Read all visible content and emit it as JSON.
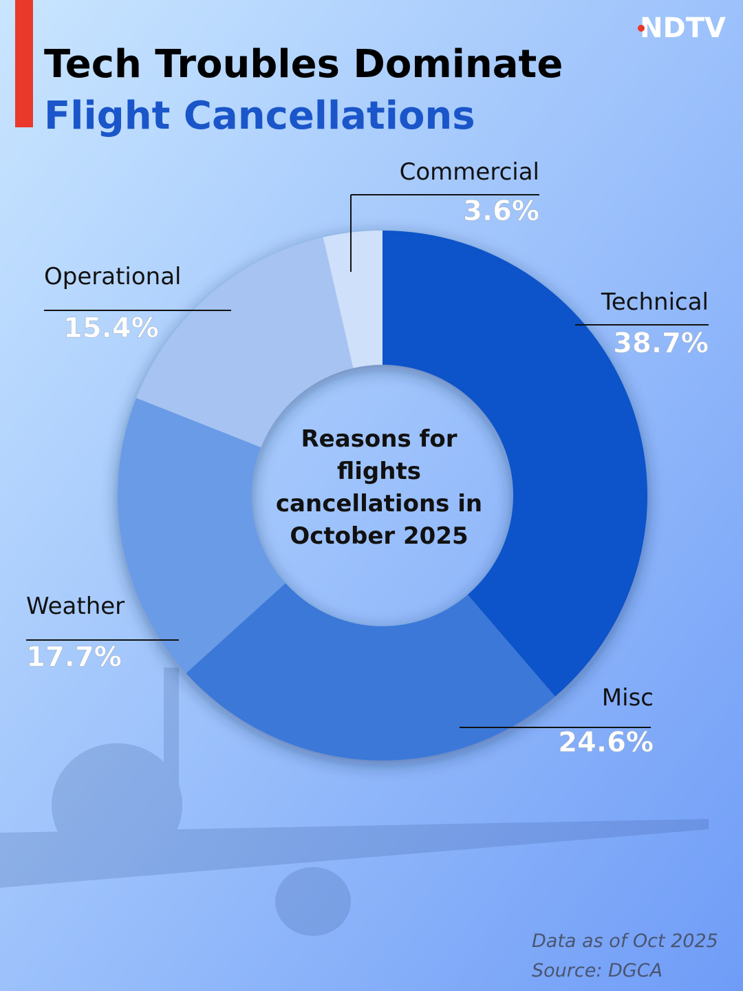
{
  "header": {
    "logo": "NDTV",
    "title_line1": "Tech Troubles Dominate",
    "title_line2": "Flight Cancellations"
  },
  "chart_data": {
    "type": "donut",
    "center_text": "Reasons for flights cancellations in October 2025",
    "categories": [
      "Technical",
      "Misc",
      "Weather",
      "Operational",
      "Commercial"
    ],
    "values": [
      38.7,
      24.6,
      17.7,
      15.4,
      3.6
    ],
    "value_labels": [
      "38.7%",
      "24.6%",
      "17.7%",
      "15.4%",
      "3.6%"
    ],
    "colors": [
      "#1152c9",
      "#3a78d8",
      "#6b9be6",
      "#a6c3f2",
      "#cfe0fa"
    ]
  },
  "footer": {
    "note": "Data as of Oct 2025",
    "source": "Source: DGCA"
  }
}
